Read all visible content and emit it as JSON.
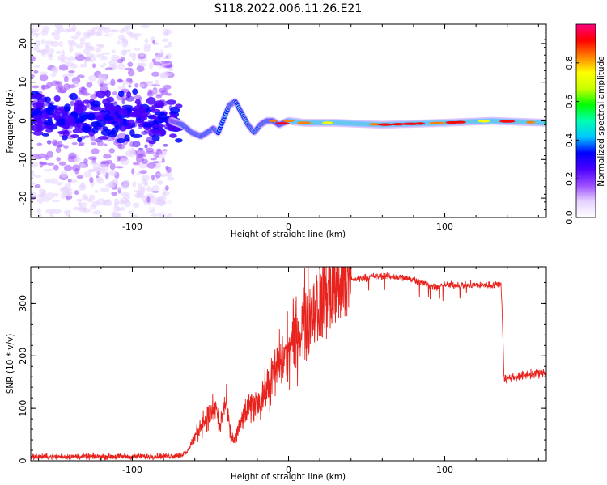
{
  "title": "S118.2022.006.11.26.E21",
  "chart_data": [
    {
      "type": "heatmap",
      "xlabel": "Height of straight line (km)",
      "ylabel": "Frequency (Hz)",
      "xlim": [
        -165,
        165
      ],
      "ylim": [
        -25,
        25
      ],
      "xticks": [
        -100,
        0,
        100
      ],
      "yticks": [
        -20,
        -10,
        0,
        10,
        20
      ],
      "ridge": {
        "x": [
          -165,
          -140,
          -120,
          -100,
          -85,
          -75,
          -68,
          -62,
          -56,
          -52,
          -48,
          -45,
          -42,
          -38,
          -34,
          -30,
          -26,
          -22,
          -18,
          -14,
          -10,
          -6,
          0,
          10,
          30,
          60,
          100,
          130,
          165
        ],
        "freq": [
          1,
          1.5,
          0.8,
          1.2,
          0.5,
          0,
          -1,
          -3,
          -4,
          -3,
          -2,
          -3,
          0,
          4,
          5,
          2,
          -1,
          -3,
          -1,
          0,
          0,
          -1,
          0,
          -0.5,
          -0.5,
          -1,
          -0.5,
          0,
          -0.5
        ]
      },
      "colorbar": {
        "label": "Normalized spectral amplitude",
        "ticks": [
          "0.0",
          "0.2",
          "0.4",
          "0.6",
          "0.8"
        ],
        "range": [
          0,
          1
        ],
        "colors": [
          "#ffffff",
          "#e6d2ff",
          "#9b4dff",
          "#4b00ff",
          "#0000ff",
          "#00c8ff",
          "#00ffb0",
          "#00ff00",
          "#c8ff00",
          "#ffff00",
          "#ff8000",
          "#ff0000",
          "#ff0080"
        ]
      }
    },
    {
      "type": "line",
      "xlabel": "Height of straight line (km)",
      "ylabel": "SNR (10 * v/v)",
      "xlim": [
        -165,
        165
      ],
      "ylim": [
        0,
        370
      ],
      "xticks": [
        -100,
        0,
        100
      ],
      "yticks": [
        0,
        100,
        200,
        300
      ],
      "color": "#e8231e",
      "series": [
        {
          "x": [
            -165,
            -140,
            -120,
            -100,
            -80,
            -70,
            -65,
            -62,
            -58,
            -55,
            -50,
            -48,
            -46,
            -44,
            -42,
            -40,
            -37,
            -35,
            -32,
            -29,
            -25,
            -20,
            -15,
            -10,
            -5,
            0,
            5,
            10,
            15,
            20,
            25,
            30,
            35,
            40,
            50,
            60,
            70,
            80,
            90,
            95,
            100,
            110,
            120,
            130,
            136,
            137,
            138,
            145,
            155,
            165
          ],
          "y": [
            8,
            8,
            8,
            8,
            9,
            10,
            15,
            35,
            55,
            75,
            85,
            95,
            100,
            60,
            95,
            110,
            45,
            40,
            60,
            85,
            100,
            110,
            130,
            160,
            190,
            210,
            240,
            265,
            285,
            305,
            320,
            335,
            340,
            345,
            350,
            352,
            350,
            346,
            335,
            330,
            335,
            335,
            335,
            335,
            338,
            260,
            155,
            160,
            165,
            168
          ]
        }
      ]
    }
  ]
}
